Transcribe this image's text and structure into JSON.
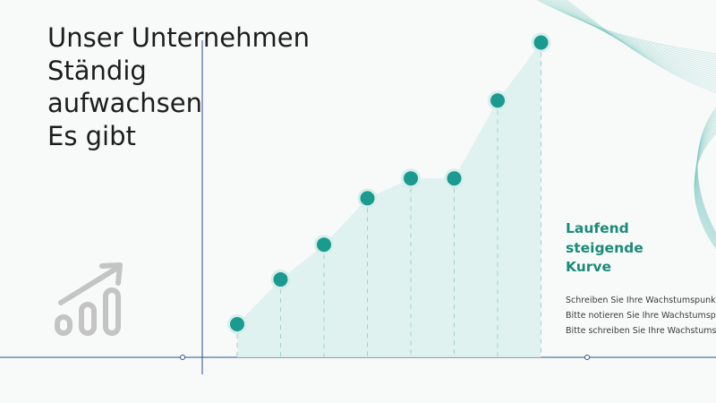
{
  "title_lines": [
    "Unser Unternehmen",
    "Ständig",
    "aufwachsen",
    "Es gibt"
  ],
  "side_heading_lines": [
    "Laufend",
    "steigende",
    "Kurve"
  ],
  "side_body_lines": [
    "Schreiben Sie Ihre Wachstumspunk",
    "Bitte notieren Sie Ihre Wachstumsp",
    "Bitte schreiben Sie Ihre Wachstums"
  ],
  "icons": {
    "growth": "growth-chart-icon"
  },
  "colors": {
    "accent": "#1b9a8f",
    "fill": "#daf0ee",
    "axis": "#2d4f86",
    "heading": "#1b8a77"
  },
  "chart_data": {
    "type": "area",
    "series": [
      {
        "values": [
          1,
          2.35,
          3.4,
          4.8,
          5.4,
          5.4,
          7.75,
          9.5
        ]
      }
    ],
    "ylim": [
      0,
      10
    ],
    "grid": false,
    "markers": true,
    "drop_lines": true
  }
}
